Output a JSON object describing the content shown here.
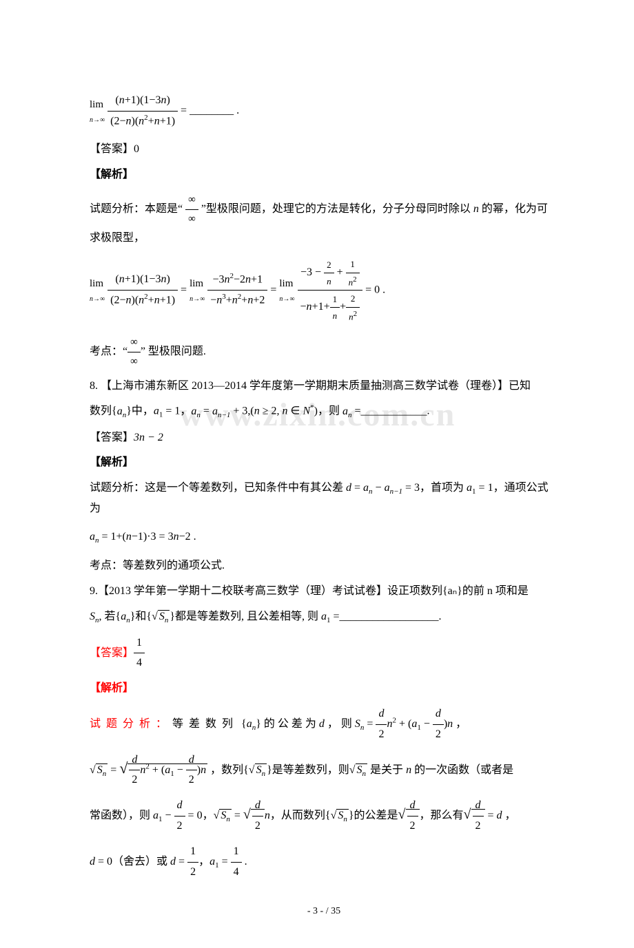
{
  "top_formula": "lim(n→∞) [(n+1)(1−3n)] / [(2−n)(n²+n+1)] = ________.",
  "q7": {
    "answer_label": "【答案】",
    "answer_value": "0",
    "analysis_label": "【解析】",
    "analysis_text": "试题分析：本题是\"∞/∞\"型极限问题，处理它的方法是转化，分子分母同时除以 n 的幂，化为可求极限型，",
    "formula": "lim(n→∞) [(n+1)(1−3n)]/[(2−n)(n²+n+1)] = lim(n→∞) [−3n²−2n+1]/[−n³+n²+n+2] = lim(n→∞) [−3−2/n+1/n²]/[−n+1+1/n+2/n²] = 0.",
    "point_label": "考点：",
    "point_text": "\"∞/∞\" 型极限问题."
  },
  "q8": {
    "number": "8. ",
    "source": "【上海市浦东新区 2013—2014 学年度第一学期期末质量抽测高三数学试卷（理卷）】已知",
    "stem": "数列{aₙ}中，a₁=1，aₙ=aₙ₋₁+3,(n≥2,n∈N*)，则 aₙ=__________.",
    "answer_label": "【答案】",
    "answer_value": "3n − 2",
    "analysis_label": "【解析】",
    "analysis_text": "试题分析：这是一个等差数列，已知条件中有其公差 d = aₙ − aₙ₋₁ = 3，首项为 a₁ = 1，通项公式为",
    "formula": "aₙ = 1+(n−1)·3 = 3n−2.",
    "point_label": "考点：",
    "point_text": "等差数列的通项公式."
  },
  "q9": {
    "number": "9.",
    "source": "【2013 学年第一学期十二校联考高三数学（理）考试试卷】设正项数列{aₙ}的前 n 项和是",
    "stem": "Sₙ, 若{aₙ}和{√Sₙ}都是等差数列, 且公差相等, 则 a₁=________________.",
    "answer_label": "【答案】",
    "answer_value": "1/4",
    "analysis_label": "【解析】",
    "analysis_line1": "试 题 分 析 ： 等 差 数 列 {aₙ} 的 公 差 为 d ， 则 Sₙ = (d/2)n² + (a₁ − d/2)n，",
    "analysis_line2": "√Sₙ = √[(d/2)n² + (a₁ − d/2)n]，数列{√Sₙ}是等差数列，则√Sₙ 是关于 n 的一次函数（或者是",
    "analysis_line3": "常函数），则 a₁ − d/2 = 0，√Sₙ = √(d/2)·n，从而数列{√Sₙ}的公差是√(d/2)，那么有√(d/2) = d，",
    "analysis_line4": "d = 0（舍去）或 d = 1/2，a₁ = 1/4."
  },
  "watermark_text": "www.zixin.com.cn",
  "page_number": "- 3 -  / 35"
}
